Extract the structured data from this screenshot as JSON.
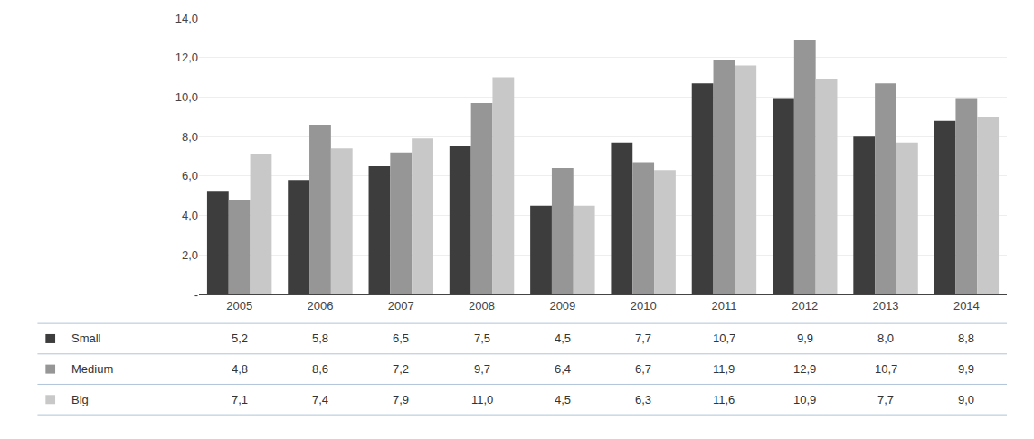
{
  "chart_data": {
    "type": "bar",
    "categories": [
      "2005",
      "2006",
      "2007",
      "2008",
      "2009",
      "2010",
      "2011",
      "2012",
      "2013",
      "2014"
    ],
    "series": [
      {
        "name": "Small",
        "color": "#3d3d3d",
        "values": [
          5.2,
          5.8,
          6.5,
          7.5,
          4.5,
          7.7,
          10.7,
          9.9,
          8.0,
          8.8
        ],
        "value_labels": [
          "5,2",
          "5,8",
          "6,5",
          "7,5",
          "4,5",
          "7,7",
          "10,7",
          "9,9",
          "8,0",
          "8,8"
        ]
      },
      {
        "name": "Medium",
        "color": "#969696",
        "values": [
          4.8,
          8.6,
          7.2,
          9.7,
          6.4,
          6.7,
          11.9,
          12.9,
          10.7,
          9.9
        ],
        "value_labels": [
          "4,8",
          "8,6",
          "7,2",
          "9,7",
          "6,4",
          "6,7",
          "11,9",
          "12,9",
          "10,7",
          "9,9"
        ]
      },
      {
        "name": "Big",
        "color": "#c8c8c8",
        "values": [
          7.1,
          7.4,
          7.9,
          11.0,
          4.5,
          6.3,
          11.6,
          10.9,
          7.7,
          9.0
        ],
        "value_labels": [
          "7,1",
          "7,4",
          "7,9",
          "11,0",
          "4,5",
          "6,3",
          "11,6",
          "10,9",
          "7,7",
          "9,0"
        ]
      }
    ],
    "ylim": [
      0,
      14.0
    ],
    "yticks": [
      {
        "value": 0,
        "label": "-"
      },
      {
        "value": 2.0,
        "label": "2,0"
      },
      {
        "value": 4.0,
        "label": "4,0"
      },
      {
        "value": 6.0,
        "label": "6,0"
      },
      {
        "value": 8.0,
        "label": "8,0"
      },
      {
        "value": 10.0,
        "label": "10,0"
      },
      {
        "value": 12.0,
        "label": "12,0"
      },
      {
        "value": 14.0,
        "label": "14,0"
      }
    ],
    "grid": true
  }
}
